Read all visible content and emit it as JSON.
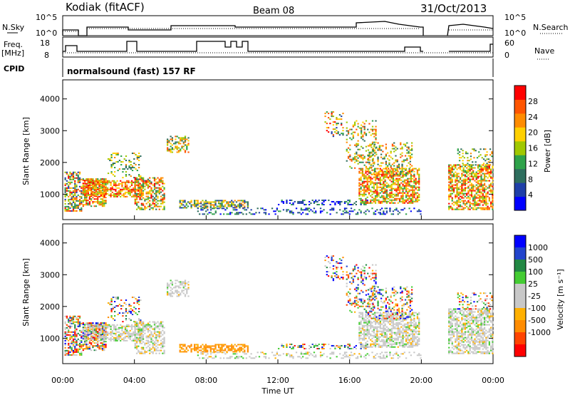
{
  "header": {
    "station": "Kodiak (fitACF)",
    "beam": "Beam 08",
    "date": "31/Oct/2013"
  },
  "top_panels": {
    "nsky_label": "N.Sky",
    "nsky_ticks": [
      "10^5",
      "10^0"
    ],
    "nsearch_label": "N.Search",
    "nsearch_ticks": [
      "10^5",
      "10^0"
    ],
    "freq_label": "Freq.",
    "freq_unit": "[MHz]",
    "freq_ticks": [
      "18",
      "8"
    ],
    "nave_label": "Nave",
    "nave_ticks": [
      "60",
      "0"
    ],
    "cpid_label": "CPID",
    "cpid_value": "normalsound (fast) 157 RF"
  },
  "colors": {
    "power": [
      "#0000ff",
      "#1f3fa8",
      "#2e6e5e",
      "#2ea24a",
      "#a0c800",
      "#ffd000",
      "#ff8c00",
      "#ff5500",
      "#ff0000"
    ],
    "velocity": [
      "#ff0000",
      "#ff4400",
      "#ff8c00",
      "#ffb000",
      "#c8c8c8",
      "#c8c8c8",
      "#44cc33",
      "#228844",
      "#2244cc",
      "#0000ff"
    ]
  },
  "chart_data": [
    {
      "type": "heatmap",
      "name": "power",
      "ylabel": "Slant Range [km]",
      "yticks": [
        "1000",
        "2000",
        "3000",
        "4000"
      ],
      "ylim": [
        200,
        4600
      ],
      "colorbar_label": "Power [dB]",
      "colorbar_ticks": [
        "4",
        "8",
        "12",
        "16",
        "20",
        "24",
        "28"
      ],
      "colorbar_range": [
        0,
        32
      ]
    },
    {
      "type": "heatmap",
      "name": "velocity",
      "ylabel": "Slant Range [km]",
      "yticks": [
        "1000",
        "2000",
        "3000",
        "4000"
      ],
      "ylim": [
        200,
        4600
      ],
      "colorbar_label": "Velocity [m s⁻¹]",
      "colorbar_ticks": [
        "1000",
        "500",
        "100",
        "25",
        "-25",
        "-100",
        "-500",
        "-1000"
      ]
    }
  ],
  "xaxis": {
    "label": "Time UT",
    "ticks": [
      "00:00",
      "04:00",
      "08:00",
      "12:00",
      "16:00",
      "20:00",
      "00:00"
    ],
    "range_hours": [
      0,
      24
    ]
  }
}
